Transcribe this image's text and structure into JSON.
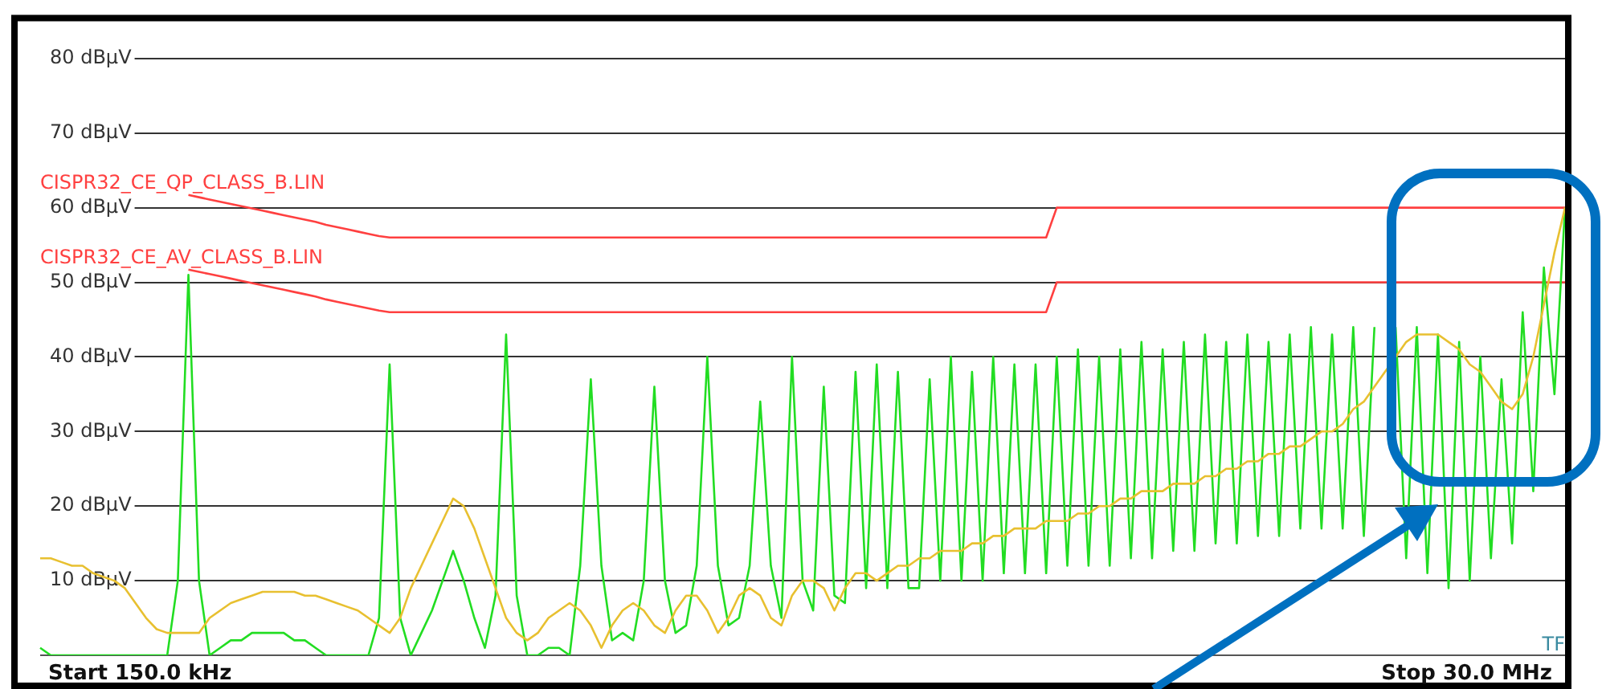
{
  "chart_data": {
    "type": "line",
    "ylim": [
      0,
      85
    ],
    "grid": "y",
    "legend": false,
    "marker": "none",
    "line_style": "solid",
    "tick_labels": "y",
    "categories": [
      null,
      null,
      null,
      null,
      null,
      null,
      null,
      null,
      null,
      null,
      null,
      null,
      null,
      null,
      null,
      null,
      null,
      null,
      null,
      null,
      null,
      null,
      null,
      null,
      null,
      null,
      null,
      null,
      null,
      null,
      null,
      null,
      null,
      null,
      null,
      null,
      null,
      null,
      null,
      null,
      null,
      null,
      null,
      null,
      null,
      null,
      null,
      null,
      null,
      null,
      null,
      null,
      null,
      null,
      null,
      null,
      null,
      null,
      null,
      null,
      null,
      null,
      null,
      null,
      null,
      null,
      null,
      null,
      null,
      null,
      null,
      null,
      null,
      null,
      null,
      null,
      null,
      null,
      null,
      null,
      null,
      null,
      null,
      null,
      null,
      null,
      null,
      null,
      null,
      null,
      null,
      null,
      null,
      null,
      null,
      null,
      null,
      null,
      null,
      null,
      null,
      null,
      null,
      null,
      null,
      null,
      null,
      null,
      null,
      null,
      null,
      null,
      null,
      null,
      null,
      null,
      null,
      null,
      null,
      null,
      null,
      null,
      null,
      null,
      null,
      null,
      null,
      null,
      null,
      null,
      null,
      null,
      null,
      null,
      null,
      null,
      null,
      null,
      null,
      null,
      null,
      null,
      null,
      null,
      null
    ],
    "yticks": [
      {
        "value": 10,
        "label": "10 dBµV"
      },
      {
        "value": 20,
        "label": "20 dBµV"
      },
      {
        "value": 30,
        "label": "30 dBµV"
      },
      {
        "value": 40,
        "label": "40 dBµV"
      },
      {
        "value": 50,
        "label": "50 dBµV"
      },
      {
        "value": 60,
        "label": "60 dBµV"
      },
      {
        "value": 70,
        "label": "70 dBµV"
      },
      {
        "value": 80,
        "label": "80 dBµV"
      }
    ],
    "annotations": [
      "Start 150.0 kHz",
      "Stop 30.0 MHz",
      "TF"
    ],
    "series": [
      {
        "color": "#e8c030",
        "values": [
          13,
          13,
          12.5,
          12,
          12,
          11,
          10.5,
          10,
          9,
          7,
          5,
          3.5,
          3,
          3,
          3,
          3,
          5,
          6,
          7,
          7.5,
          8,
          8.5,
          8.5,
          8.5,
          8.5,
          8,
          8,
          7.5,
          7,
          6.5,
          6,
          5,
          4,
          3,
          5,
          9,
          12,
          15,
          18,
          21,
          20,
          17,
          13,
          9,
          5,
          3,
          2,
          3,
          5,
          6,
          7,
          6,
          4,
          1,
          4,
          6,
          7,
          6,
          4,
          3,
          6,
          8,
          8,
          6,
          3,
          5,
          8,
          9,
          8,
          5,
          4,
          8,
          10,
          10,
          9,
          6,
          9,
          11,
          11,
          10,
          11,
          12,
          12,
          13,
          13,
          14,
          14,
          14,
          15,
          15,
          16,
          16,
          17,
          17,
          17,
          18,
          18,
          18,
          19,
          19,
          20,
          20,
          21,
          21,
          22,
          22,
          22,
          23,
          23,
          23,
          24,
          24,
          25,
          25,
          26,
          26,
          27,
          27,
          28,
          28,
          29,
          30,
          30,
          31,
          33,
          34,
          36,
          38,
          40,
          42,
          43,
          43,
          43,
          42,
          41,
          39,
          38,
          36,
          34,
          33,
          35,
          40,
          47,
          54,
          60
        ]
      },
      {
        "color": "#22dd22",
        "values": [
          1,
          0,
          0,
          0,
          0,
          0,
          0,
          0,
          0,
          0,
          0,
          0,
          0,
          10,
          51,
          10,
          0,
          1,
          2,
          2,
          3,
          3,
          3,
          3,
          2,
          2,
          1,
          0,
          0,
          0,
          0,
          0,
          5,
          39,
          5,
          0,
          3,
          6,
          10,
          14,
          10,
          5,
          1,
          8,
          43,
          8,
          0,
          0,
          1,
          1,
          0,
          12,
          37,
          12,
          2,
          3,
          2,
          10,
          36,
          10,
          3,
          4,
          12,
          40,
          12,
          4,
          5,
          12,
          34,
          12,
          5,
          40,
          10,
          6,
          36,
          8,
          7,
          38,
          9,
          39,
          9,
          38,
          9,
          9,
          37,
          10,
          40,
          10,
          38,
          10,
          40,
          11,
          39,
          11,
          39,
          11,
          40,
          12,
          41,
          12,
          40,
          12,
          41,
          13,
          42,
          13,
          41,
          14,
          42,
          14,
          43,
          15,
          42,
          15,
          43,
          16,
          42,
          16,
          43,
          17,
          44,
          17,
          43,
          17,
          44,
          16,
          44,
          null,
          44,
          13,
          44,
          11,
          43,
          9,
          42,
          10,
          40,
          13,
          37,
          15,
          46,
          22,
          52,
          35,
          60
        ]
      },
      {
        "name": "CISPR32_CE_QP_CLASS_B.LIN",
        "color": "#ff4040",
        "values": [
          null,
          null,
          null,
          null,
          null,
          null,
          null,
          null,
          null,
          null,
          null,
          null,
          null,
          null,
          61.7,
          61.4,
          61.1,
          60.8,
          60.5,
          60.2,
          59.9,
          59.6,
          59.3,
          59.0,
          58.7,
          58.4,
          58.1,
          57.7,
          57.4,
          57.1,
          56.8,
          56.5,
          56.2,
          56,
          56,
          56,
          56,
          56,
          56,
          56,
          56,
          56,
          56,
          56,
          56,
          56,
          56,
          56,
          56,
          56,
          56,
          56,
          56,
          56,
          56,
          56,
          56,
          56,
          56,
          56,
          56,
          56,
          56,
          56,
          56,
          56,
          56,
          56,
          56,
          56,
          56,
          56,
          56,
          56,
          56,
          56,
          56,
          56,
          56,
          56,
          56,
          56,
          56,
          56,
          56,
          56,
          56,
          56,
          56,
          56,
          56,
          56,
          56,
          56,
          56,
          56,
          60,
          60,
          60,
          60,
          60,
          60,
          60,
          60,
          60,
          60,
          60,
          60,
          60,
          60,
          60,
          60,
          60,
          60,
          60,
          60,
          60,
          60,
          60,
          60,
          60,
          60,
          60,
          60,
          60,
          60,
          60,
          60,
          60,
          60,
          60,
          60,
          60,
          60,
          60,
          60,
          60,
          60,
          60,
          60,
          60,
          60,
          60,
          60,
          60
        ]
      },
      {
        "name": "CISPR32_CE_AV_CLASS_B.LIN",
        "color": "#ff4040",
        "values": [
          null,
          null,
          null,
          null,
          null,
          null,
          null,
          null,
          null,
          null,
          null,
          null,
          null,
          null,
          51.7,
          51.4,
          51.1,
          50.8,
          50.5,
          50.2,
          49.9,
          49.6,
          49.3,
          49.0,
          48.7,
          48.4,
          48.1,
          47.7,
          47.4,
          47.1,
          46.8,
          46.5,
          46.2,
          46,
          46,
          46,
          46,
          46,
          46,
          46,
          46,
          46,
          46,
          46,
          46,
          46,
          46,
          46,
          46,
          46,
          46,
          46,
          46,
          46,
          46,
          46,
          46,
          46,
          46,
          46,
          46,
          46,
          46,
          46,
          46,
          46,
          46,
          46,
          46,
          46,
          46,
          46,
          46,
          46,
          46,
          46,
          46,
          46,
          46,
          46,
          46,
          46,
          46,
          46,
          46,
          46,
          46,
          46,
          46,
          46,
          46,
          46,
          46,
          46,
          46,
          46,
          50,
          50,
          50,
          50,
          50,
          50,
          50,
          50,
          50,
          50,
          50,
          50,
          50,
          50,
          50,
          50,
          50,
          50,
          50,
          50,
          50,
          50,
          50,
          50,
          50,
          50,
          50,
          50,
          50,
          50,
          50,
          50,
          50,
          50,
          50,
          50,
          50,
          50,
          50,
          50,
          50,
          50,
          50,
          50,
          50,
          50,
          50,
          50,
          50
        ]
      }
    ]
  }
}
